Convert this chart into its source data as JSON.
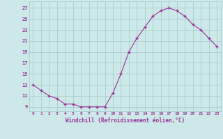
{
  "x": [
    0,
    1,
    2,
    3,
    4,
    5,
    6,
    7,
    8,
    9,
    10,
    11,
    12,
    13,
    14,
    15,
    16,
    17,
    18,
    19,
    20,
    21,
    22,
    23
  ],
  "y": [
    13,
    12,
    11,
    10.5,
    9.5,
    9.5,
    9,
    9,
    9,
    9,
    11.5,
    15,
    19,
    21.5,
    23.5,
    25.5,
    26.5,
    27,
    26.5,
    25.5,
    24,
    23,
    21.5,
    20
  ],
  "line_color": "#993399",
  "marker": "+",
  "bg_color": "#cce8e8",
  "grid_color": "#aacccc",
  "xlabel": "Windchill (Refroidissement éolien,°C)",
  "ylabel_ticks": [
    9,
    11,
    13,
    15,
    17,
    19,
    21,
    23,
    25,
    27
  ],
  "xlim": [
    -0.5,
    23.5
  ],
  "ylim": [
    8.2,
    28.2
  ],
  "tick_color": "#993399",
  "xlabel_color": "#993399",
  "ytick_labels": [
    "9",
    "11",
    "13",
    "15",
    "17",
    "19",
    "21",
    "23",
    "25",
    "27"
  ],
  "xtick_labels": [
    "0",
    "1",
    "2",
    "3",
    "4",
    "5",
    "6",
    "7",
    "8",
    "9",
    "10",
    "11",
    "12",
    "13",
    "14",
    "15",
    "16",
    "17",
    "18",
    "19",
    "20",
    "21",
    "22",
    "23"
  ]
}
